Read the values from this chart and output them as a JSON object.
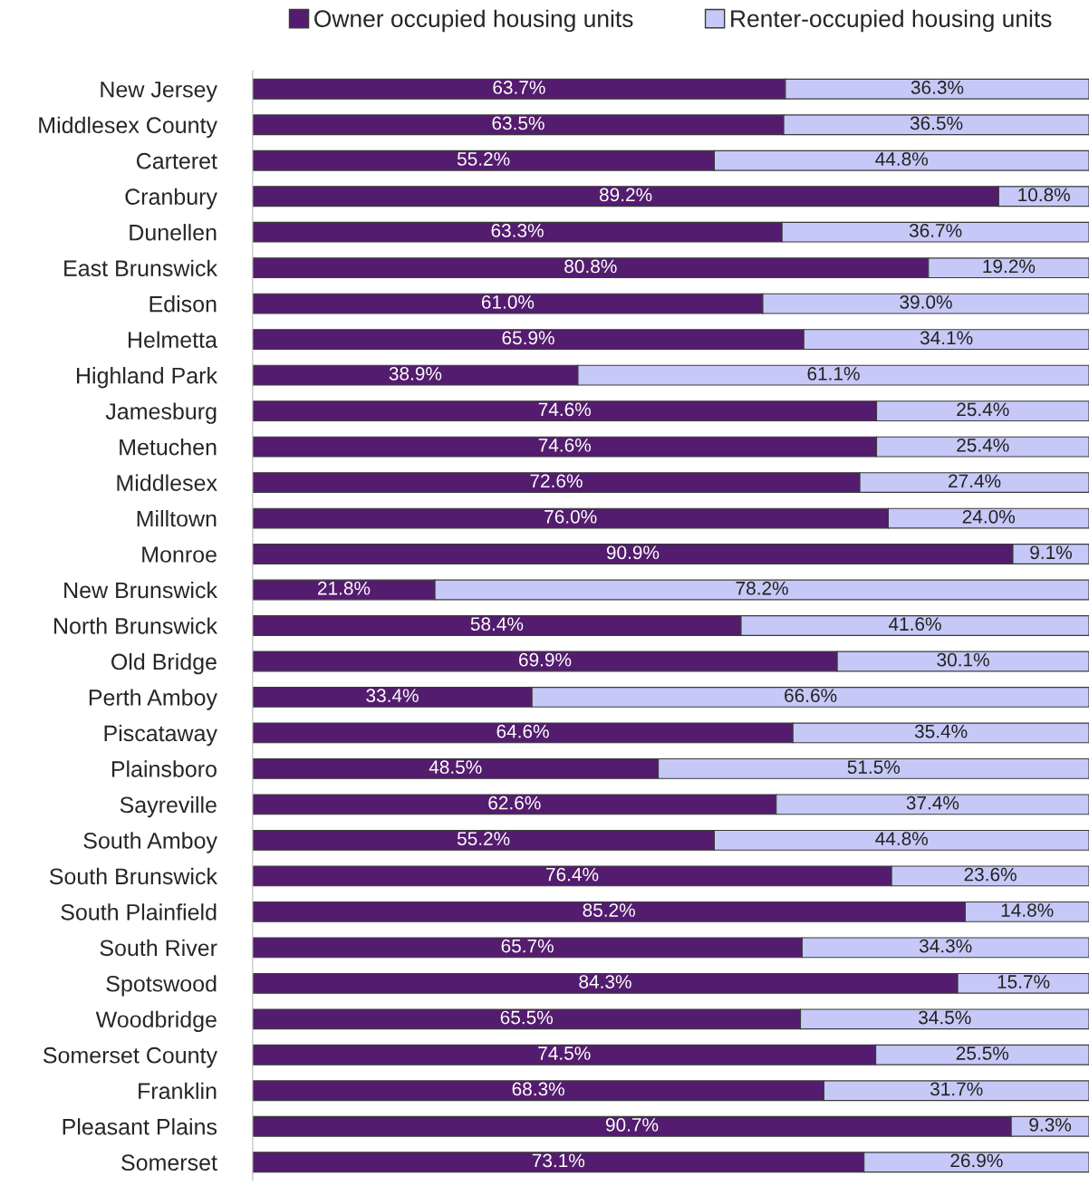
{
  "chart_data": {
    "type": "bar",
    "orientation": "horizontal",
    "stacked": true,
    "data_labels": true,
    "legend": "top",
    "xlim": [
      0,
      100
    ],
    "categories": [
      "New Jersey",
      "Middlesex County",
      "Carteret",
      "Cranbury",
      "Dunellen",
      "East Brunswick",
      "Edison",
      "Helmetta",
      "Highland Park",
      "Jamesburg",
      "Metuchen",
      "Middlesex",
      "Milltown",
      "Monroe",
      "New Brunswick",
      "North Brunswick",
      "Old Bridge",
      "Perth Amboy",
      "Piscataway",
      "Plainsboro",
      "Sayreville",
      "South Amboy",
      "South Brunswick",
      "South Plainfield",
      "South River",
      "Spotswood",
      "Woodbridge",
      "Somerset County",
      "Franklin",
      "Pleasant Plains",
      "Somerset"
    ],
    "series": [
      {
        "name": "Owner occupied housing units",
        "color": "#541c6e",
        "values": [
          63.7,
          63.5,
          55.2,
          89.2,
          63.3,
          80.8,
          61.0,
          65.9,
          38.9,
          74.6,
          74.6,
          72.6,
          76.0,
          90.9,
          21.8,
          58.4,
          69.9,
          33.4,
          64.6,
          48.5,
          62.6,
          55.2,
          76.4,
          85.2,
          65.7,
          84.3,
          65.5,
          74.5,
          68.3,
          90.7,
          73.1
        ],
        "value_labels": [
          "63.7%",
          "63.5%",
          "55.2%",
          "89.2%",
          "63.3%",
          "80.8%",
          "61.0%",
          "65.9%",
          "38.9%",
          "74.6%",
          "74.6%",
          "72.6%",
          "76.0%",
          "90.9%",
          "21.8%",
          "58.4%",
          "69.9%",
          "33.4%",
          "64.6%",
          "48.5%",
          "62.6%",
          "55.2%",
          "76.4%",
          "85.2%",
          "65.7%",
          "84.3%",
          "65.5%",
          "74.5%",
          "68.3%",
          "90.7%",
          "73.1%"
        ]
      },
      {
        "name": "Renter-occupied housing units",
        "color": "#c6c9f7",
        "values": [
          36.3,
          36.5,
          44.8,
          10.8,
          36.7,
          19.2,
          39.0,
          34.1,
          61.1,
          25.4,
          25.4,
          27.4,
          24.0,
          9.1,
          78.2,
          41.6,
          30.1,
          66.6,
          35.4,
          51.5,
          37.4,
          44.8,
          23.6,
          14.8,
          34.3,
          15.7,
          34.5,
          25.5,
          31.7,
          9.3,
          26.9
        ],
        "value_labels": [
          "36.3%",
          "36.5%",
          "44.8%",
          "10.8%",
          "36.7%",
          "19.2%",
          "39.0%",
          "34.1%",
          "61.1%",
          "25.4%",
          "25.4%",
          "27.4%",
          "24.0%",
          "9.1%",
          "78.2%",
          "41.6%",
          "30.1%",
          "66.6%",
          "35.4%",
          "51.5%",
          "37.4%",
          "44.8%",
          "23.6%",
          "14.8%",
          "34.3%",
          "15.7%",
          "34.5%",
          "25.5%",
          "31.7%",
          "9.3%",
          "26.9%"
        ]
      }
    ]
  }
}
